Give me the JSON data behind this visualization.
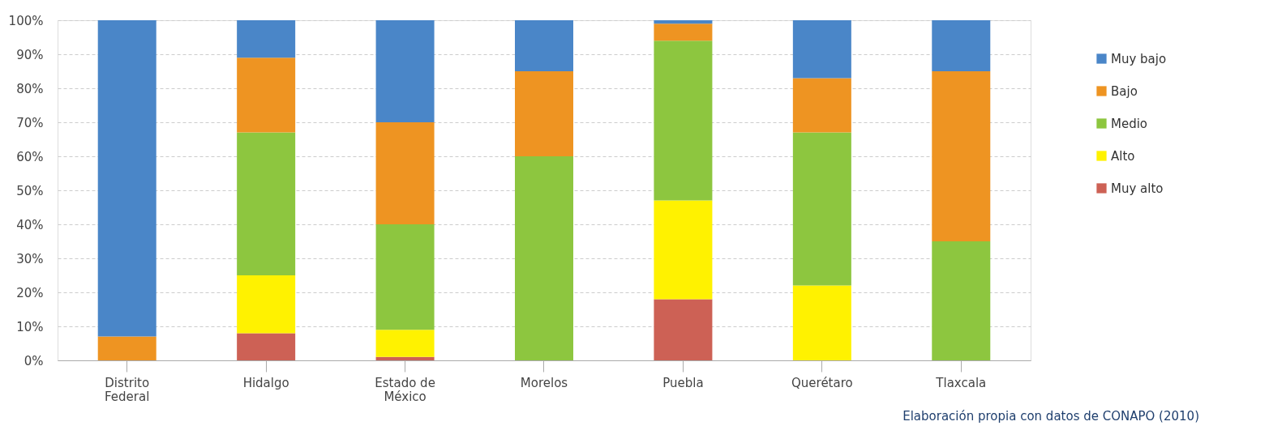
{
  "chart_data": {
    "type": "bar",
    "stacked": true,
    "categories": [
      "Distrito Federal",
      "Hidalgo",
      "Estado de México",
      "Morelos",
      "Puebla",
      "Querétaro",
      "Tlaxcala"
    ],
    "series": [
      {
        "name": "Muy alto",
        "color": "#cd6155",
        "values": [
          0,
          8,
          1,
          0,
          18,
          0,
          0
        ]
      },
      {
        "name": "Alto",
        "color": "#fff200",
        "values": [
          0,
          17,
          8,
          0,
          29,
          22,
          0
        ]
      },
      {
        "name": "Medio",
        "color": "#8dc63f",
        "values": [
          0,
          42,
          31,
          60,
          47,
          45,
          35
        ]
      },
      {
        "name": "Bajo",
        "color": "#ee9422",
        "values": [
          7,
          22,
          30,
          25,
          5,
          16,
          50
        ]
      },
      {
        "name": "Muy bajo",
        "color": "#4a86c8",
        "values": [
          93,
          11,
          30,
          15,
          1,
          17,
          15
        ]
      }
    ],
    "ylim": [
      0,
      100
    ],
    "yticks": [
      {
        "value": 0,
        "label": "0%"
      },
      {
        "value": 10,
        "label": "10%"
      },
      {
        "value": 20,
        "label": "20%"
      },
      {
        "value": 30,
        "label": "30%"
      },
      {
        "value": 40,
        "label": "40%"
      },
      {
        "value": 50,
        "label": "50%"
      },
      {
        "value": 60,
        "label": "60%"
      },
      {
        "value": 70,
        "label": "70%"
      },
      {
        "value": 80,
        "label": "80%"
      },
      {
        "value": 90,
        "label": "90%"
      },
      {
        "value": 100,
        "label": "100%"
      }
    ],
    "grid": "y",
    "legend": "right",
    "annotations": [
      "Elaboración propia con datos de CONAPO (2010)"
    ]
  }
}
